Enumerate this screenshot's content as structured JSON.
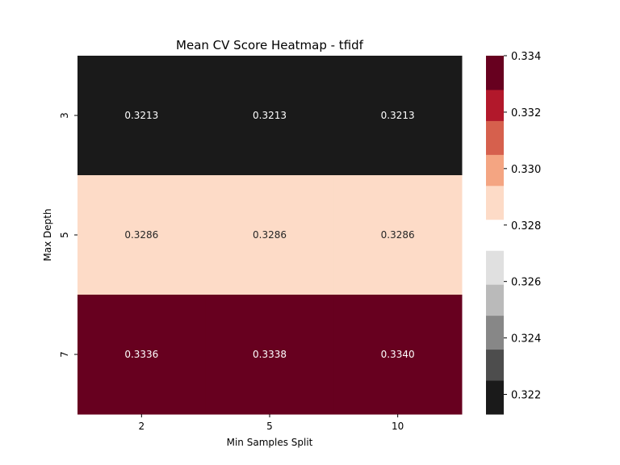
{
  "chart_data": {
    "type": "heatmap",
    "title": "Mean CV Score Heatmap - tfidf",
    "xlabel": "Min Samples Split",
    "ylabel": "Max Depth",
    "x_categories": [
      "2",
      "5",
      "10"
    ],
    "y_categories": [
      "3",
      "5",
      "7"
    ],
    "values": [
      [
        0.3213,
        0.3213,
        0.3213
      ],
      [
        0.3286,
        0.3286,
        0.3286
      ],
      [
        0.3336,
        0.3338,
        0.334
      ]
    ],
    "cell_labels": [
      [
        "0.3213",
        "0.3213",
        "0.3213"
      ],
      [
        "0.3286",
        "0.3286",
        "0.3286"
      ],
      [
        "0.3336",
        "0.3338",
        "0.3340"
      ]
    ],
    "colorbar": {
      "range": [
        0.3213,
        0.334
      ],
      "ticks": [
        "0.322",
        "0.324",
        "0.326",
        "0.328",
        "0.330",
        "0.332",
        "0.334"
      ],
      "tick_values": [
        0.322,
        0.324,
        0.326,
        0.328,
        0.33,
        0.332,
        0.334
      ],
      "segments": [
        {
          "from": 0.3213,
          "to": 0.3225,
          "color": "#1a1a1a"
        },
        {
          "from": 0.3225,
          "to": 0.3236,
          "color": "#4d4d4d"
        },
        {
          "from": 0.3236,
          "to": 0.3248,
          "color": "#878787"
        },
        {
          "from": 0.3248,
          "to": 0.3259,
          "color": "#bababa"
        },
        {
          "from": 0.3259,
          "to": 0.3271,
          "color": "#e0e0e0"
        },
        {
          "from": 0.3271,
          "to": 0.3282,
          "color": "#ffffff"
        },
        {
          "from": 0.3282,
          "to": 0.3294,
          "color": "#fddbc7"
        },
        {
          "from": 0.3294,
          "to": 0.3305,
          "color": "#f4a582"
        },
        {
          "from": 0.3305,
          "to": 0.3317,
          "color": "#d6604d"
        },
        {
          "from": 0.3317,
          "to": 0.3328,
          "color": "#b2182b"
        },
        {
          "from": 0.3328,
          "to": 0.334,
          "color": "#67001f"
        }
      ]
    },
    "cell_colors": [
      [
        "#1a1a1a",
        "#1a1a1a",
        "#1a1a1a"
      ],
      [
        "#fddbc7",
        "#fddbc7",
        "#fddbc7"
      ],
      [
        "#67001f",
        "#67001f",
        "#67001f"
      ]
    ],
    "label_colors": [
      [
        "#ffffff",
        "#ffffff",
        "#ffffff"
      ],
      [
        "#262626",
        "#262626",
        "#262626"
      ],
      [
        "#ffffff",
        "#ffffff",
        "#ffffff"
      ]
    ]
  }
}
